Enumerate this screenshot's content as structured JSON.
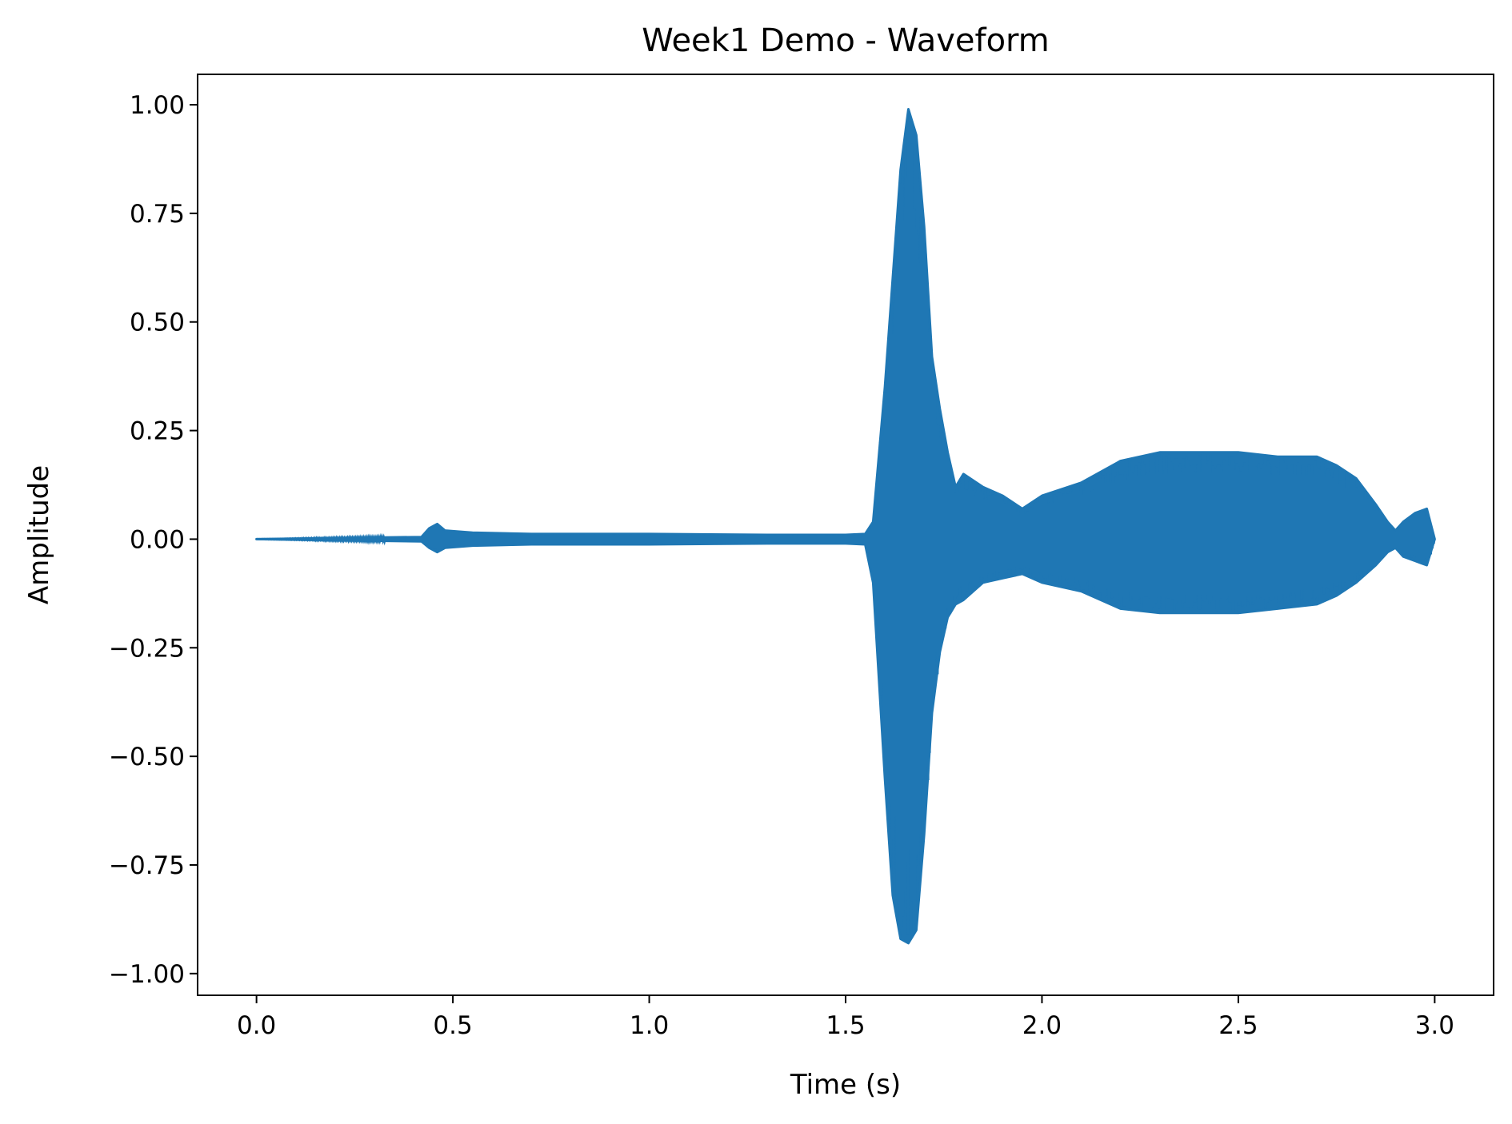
{
  "chart_data": {
    "type": "line",
    "title": "Week1 Demo - Waveform",
    "xlabel": "Time (s)",
    "ylabel": "Amplitude",
    "xlim": [
      -0.15,
      3.15
    ],
    "ylim": [
      -1.05,
      1.07
    ],
    "xticks": [
      0.0,
      0.5,
      1.0,
      1.5,
      2.0,
      2.5,
      3.0
    ],
    "xtick_labels": [
      "0.0",
      "0.5",
      "1.0",
      "1.5",
      "2.0",
      "2.5",
      "3.0"
    ],
    "yticks": [
      1.0,
      0.75,
      0.5,
      0.25,
      0.0,
      -0.25,
      -0.5,
      -0.75,
      -1.0
    ],
    "ytick_labels": [
      "1.00",
      "0.75",
      "0.50",
      "0.25",
      "0.00",
      "−0.25",
      "−0.50",
      "−0.75",
      "−1.00"
    ],
    "grid": false,
    "legend": false,
    "line_color": "#1f77b4",
    "series": [
      {
        "style": "envelope",
        "x": [
          0.0,
          0.42,
          0.44,
          0.46,
          0.48,
          0.55,
          0.7,
          1.0,
          1.3,
          1.5,
          1.55,
          1.57,
          1.6,
          1.62,
          1.64,
          1.66,
          1.68,
          1.7,
          1.72,
          1.74,
          1.76,
          1.78,
          1.8,
          1.85,
          1.9,
          1.95,
          2.0,
          2.1,
          2.2,
          2.3,
          2.4,
          2.5,
          2.6,
          2.7,
          2.75,
          2.8,
          2.85,
          2.88,
          2.9,
          2.92,
          2.95,
          2.98,
          3.0
        ],
        "upper": [
          0.0,
          0.005,
          0.025,
          0.035,
          0.02,
          0.015,
          0.012,
          0.012,
          0.01,
          0.01,
          0.012,
          0.04,
          0.35,
          0.6,
          0.85,
          0.99,
          0.93,
          0.72,
          0.42,
          0.3,
          0.2,
          0.12,
          0.15,
          0.12,
          0.1,
          0.07,
          0.1,
          0.13,
          0.18,
          0.2,
          0.2,
          0.2,
          0.19,
          0.19,
          0.17,
          0.14,
          0.08,
          0.04,
          0.02,
          0.04,
          0.06,
          0.07,
          0.0
        ],
        "lower": [
          0.0,
          -0.005,
          -0.02,
          -0.03,
          -0.02,
          -0.015,
          -0.012,
          -0.012,
          -0.01,
          -0.01,
          -0.012,
          -0.1,
          -0.55,
          -0.82,
          -0.92,
          -0.93,
          -0.9,
          -0.68,
          -0.4,
          -0.26,
          -0.18,
          -0.15,
          -0.14,
          -0.1,
          -0.09,
          -0.08,
          -0.1,
          -0.12,
          -0.16,
          -0.17,
          -0.17,
          -0.17,
          -0.16,
          -0.15,
          -0.13,
          -0.1,
          -0.06,
          -0.03,
          -0.02,
          -0.04,
          -0.05,
          -0.06,
          0.0
        ]
      }
    ]
  }
}
